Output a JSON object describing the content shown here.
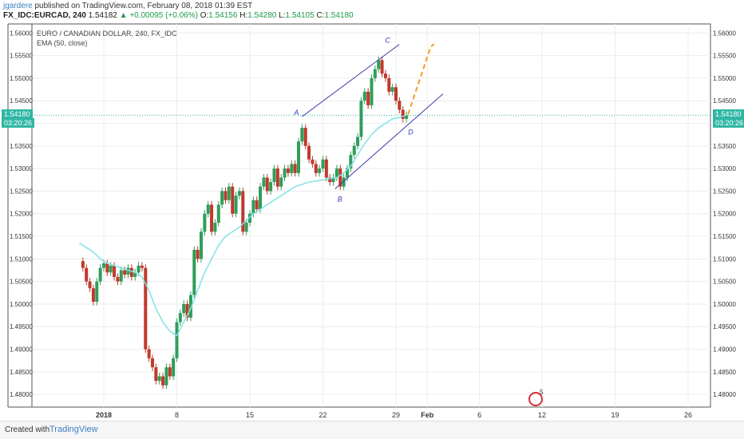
{
  "header": {
    "author": "jgardere",
    "published": " published on TradingView.com, February 08, 2018 01:39 EST"
  },
  "ohlc": {
    "symbol": "FX_IDC:EURCAD, 240",
    "last": "1.54182",
    "change": "▲ +0.00095 (+0.06%)",
    "o_label": "O:",
    "o": "1.54156",
    "h_label": "H:",
    "h": "1.54280",
    "l_label": "L:",
    "l": "1.54105",
    "c_label": "C:",
    "c": "1.54180"
  },
  "legend": {
    "title": "EURO / CANADIAN DOLLAR, 240, FX_IDC",
    "indicator": "EMA (50, close)"
  },
  "price_tags": {
    "left_price": "1.54180",
    "left_timer": "03:20:26",
    "right_price": "1.54180",
    "right_timer": "03:20:26"
  },
  "annotations": {
    "a": "A",
    "b": "B",
    "c": "C",
    "d": "D"
  },
  "alarm": {
    "count": "5"
  },
  "footer": {
    "created_with": "Created with",
    "brand": "TradingView"
  },
  "colors": {
    "bull": "#2e9e5a",
    "bear": "#c0392b",
    "ema": "#7fe3e6",
    "pattern_line": "#3b3bb0",
    "projection": "#f0a020",
    "price_line": "#2fb7a5"
  },
  "chart_data": {
    "type": "candlestick",
    "title": "EURO / CANADIAN DOLLAR, 240, FX_IDC",
    "ylim": [
      1.4772,
      1.562
    ],
    "y_ticks": [
      "1.56000",
      "1.55500",
      "1.55000",
      "1.54500",
      "1.54000",
      "1.53500",
      "1.53000",
      "1.52500",
      "1.52000",
      "1.51500",
      "1.51000",
      "1.50500",
      "1.50000",
      "1.49500",
      "1.49000",
      "1.48500",
      "1.48000"
    ],
    "x_ticks": [
      "2018",
      "8",
      "15",
      "22",
      "29",
      "Feb",
      "6",
      "12",
      "19",
      "26"
    ],
    "close_path": [
      [
        -14,
        1.5095
      ],
      [
        -12,
        1.508
      ],
      [
        -10,
        1.505
      ],
      [
        -8,
        1.5035
      ],
      [
        -6,
        1.5005
      ],
      [
        -4,
        1.505
      ],
      [
        -2,
        1.508
      ],
      [
        0,
        1.509
      ],
      [
        2,
        1.507
      ],
      [
        4,
        1.5085
      ],
      [
        6,
        1.506
      ],
      [
        8,
        1.505
      ],
      [
        10,
        1.5075
      ],
      [
        12,
        1.5065
      ],
      [
        14,
        1.508
      ],
      [
        16,
        1.506
      ],
      [
        18,
        1.507
      ],
      [
        20,
        1.5085
      ],
      [
        22,
        1.508
      ],
      [
        24,
        1.49
      ],
      [
        26,
        1.488
      ],
      [
        28,
        1.486
      ],
      [
        30,
        1.483
      ],
      [
        32,
        1.484
      ],
      [
        34,
        1.482
      ],
      [
        36,
        1.486
      ],
      [
        38,
        1.484
      ],
      [
        40,
        1.488
      ],
      [
        42,
        1.496
      ],
      [
        44,
        1.498
      ],
      [
        46,
        1.5
      ],
      [
        48,
        1.497
      ],
      [
        50,
        1.502
      ],
      [
        52,
        1.512
      ],
      [
        54,
        1.51
      ],
      [
        56,
        1.516
      ],
      [
        58,
        1.52
      ],
      [
        60,
        1.522
      ],
      [
        62,
        1.516
      ],
      [
        64,
        1.518
      ],
      [
        66,
        1.522
      ],
      [
        68,
        1.525
      ],
      [
        70,
        1.523
      ],
      [
        72,
        1.526
      ],
      [
        74,
        1.52
      ],
      [
        76,
        1.524
      ],
      [
        78,
        1.525
      ],
      [
        80,
        1.516
      ],
      [
        82,
        1.518
      ],
      [
        84,
        1.52
      ],
      [
        86,
        1.523
      ],
      [
        88,
        1.521
      ],
      [
        90,
        1.526
      ],
      [
        92,
        1.528
      ],
      [
        94,
        1.525
      ],
      [
        96,
        1.527
      ],
      [
        98,
        1.53
      ],
      [
        100,
        1.526
      ],
      [
        102,
        1.528
      ],
      [
        104,
        1.53
      ],
      [
        106,
        1.529
      ],
      [
        108,
        1.531
      ],
      [
        110,
        1.529
      ],
      [
        112,
        1.536
      ],
      [
        114,
        1.539
      ],
      [
        116,
        1.535
      ],
      [
        118,
        1.532
      ],
      [
        120,
        1.531
      ],
      [
        122,
        1.529
      ],
      [
        124,
        1.53
      ],
      [
        126,
        1.532
      ],
      [
        128,
        1.528
      ],
      [
        130,
        1.527
      ],
      [
        132,
        1.528
      ],
      [
        134,
        1.53
      ],
      [
        136,
        1.526
      ],
      [
        138,
        1.528
      ],
      [
        140,
        1.53
      ],
      [
        142,
        1.533
      ],
      [
        144,
        1.535
      ],
      [
        146,
        1.537
      ],
      [
        148,
        1.545
      ],
      [
        150,
        1.547
      ],
      [
        152,
        1.544
      ],
      [
        154,
        1.55
      ],
      [
        156,
        1.552
      ],
      [
        158,
        1.554
      ],
      [
        160,
        1.551
      ],
      [
        162,
        1.55
      ],
      [
        164,
        1.547
      ],
      [
        166,
        1.548
      ],
      [
        168,
        1.545
      ],
      [
        170,
        1.543
      ],
      [
        172,
        1.541
      ],
      [
        174,
        1.5418
      ]
    ],
    "ema_path": [
      [
        -14,
        1.5135
      ],
      [
        -10,
        1.5125
      ],
      [
        -6,
        1.5115
      ],
      [
        -2,
        1.51
      ],
      [
        2,
        1.509
      ],
      [
        6,
        1.5085
      ],
      [
        10,
        1.508
      ],
      [
        14,
        1.5075
      ],
      [
        18,
        1.507
      ],
      [
        22,
        1.506
      ],
      [
        26,
        1.503
      ],
      [
        30,
        1.499
      ],
      [
        34,
        1.496
      ],
      [
        38,
        1.494
      ],
      [
        42,
        1.493
      ],
      [
        46,
        1.496
      ],
      [
        50,
        1.499
      ],
      [
        54,
        1.503
      ],
      [
        58,
        1.507
      ],
      [
        62,
        1.51
      ],
      [
        66,
        1.513
      ],
      [
        70,
        1.515
      ],
      [
        74,
        1.516
      ],
      [
        78,
        1.517
      ],
      [
        82,
        1.5185
      ],
      [
        86,
        1.52
      ],
      [
        90,
        1.521
      ],
      [
        94,
        1.522
      ],
      [
        98,
        1.523
      ],
      [
        102,
        1.524
      ],
      [
        106,
        1.525
      ],
      [
        110,
        1.526
      ],
      [
        114,
        1.5265
      ],
      [
        118,
        1.527
      ],
      [
        122,
        1.5272
      ],
      [
        126,
        1.5275
      ],
      [
        130,
        1.5278
      ],
      [
        134,
        1.528
      ],
      [
        138,
        1.529
      ],
      [
        142,
        1.5305
      ],
      [
        146,
        1.533
      ],
      [
        150,
        1.5355
      ],
      [
        154,
        1.5375
      ],
      [
        158,
        1.539
      ],
      [
        162,
        1.54
      ],
      [
        166,
        1.541
      ],
      [
        170,
        1.5413
      ],
      [
        174,
        1.5418
      ]
    ],
    "channel_upper": [
      [
        114,
        1.5415
      ],
      [
        170,
        1.5575
      ]
    ],
    "channel_lower": [
      [
        133,
        1.5255
      ],
      [
        195,
        1.5465
      ]
    ],
    "projection": [
      [
        175,
        1.542
      ],
      [
        188,
        1.557
      ],
      [
        190,
        1.5575
      ]
    ],
    "last_price": 1.5418
  }
}
